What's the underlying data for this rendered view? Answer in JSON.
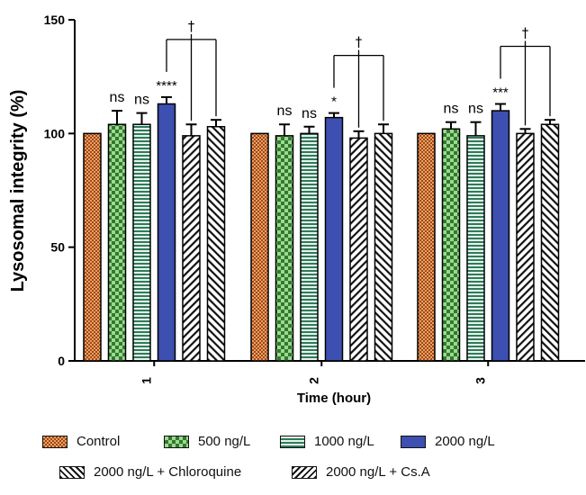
{
  "chart_data": {
    "type": "bar",
    "title": "",
    "xlabel": "Time (hour)",
    "ylabel": "Lysosomal integrity (%)",
    "ylim": [
      0,
      150
    ],
    "yticks": [
      0,
      50,
      100,
      150
    ],
    "categories": [
      "1",
      "2",
      "3"
    ],
    "series": [
      {
        "name": "Control",
        "values": [
          100,
          100,
          100
        ],
        "errors": [
          0,
          0,
          0
        ],
        "labels": [
          "",
          "",
          ""
        ],
        "pattern": "checker-brown",
        "color": "#d9773a"
      },
      {
        "name": "500 ng/L",
        "values": [
          104,
          99,
          102
        ],
        "errors": [
          6,
          5,
          3
        ],
        "labels": [
          "ns",
          "ns",
          "ns"
        ],
        "pattern": "checker-green",
        "color": "#7cc36a"
      },
      {
        "name": "1000 ng/L",
        "values": [
          104,
          100,
          99
        ],
        "errors": [
          5,
          3,
          6
        ],
        "labels": [
          "ns",
          "ns",
          "ns"
        ],
        "pattern": "hlines-green",
        "color": "#7ab89a"
      },
      {
        "name": "2000 ng/L",
        "values": [
          113,
          107,
          110
        ],
        "errors": [
          3,
          2,
          3
        ],
        "labels": [
          "****",
          "*",
          "***"
        ],
        "pattern": "solid-blue",
        "color": "#3d4fb0"
      },
      {
        "name": "2000 ng/L + Chloroquine",
        "values": [
          99,
          98,
          100
        ],
        "errors": [
          5,
          3,
          2
        ],
        "labels": [
          "",
          "",
          ""
        ],
        "pattern": "diag-right",
        "color": "#111111"
      },
      {
        "name": "2000 ng/L + Cs.A",
        "values": [
          103,
          100,
          104
        ],
        "errors": [
          3,
          4,
          2
        ],
        "labels": [
          "",
          "",
          ""
        ],
        "pattern": "diag-left",
        "color": "#111111"
      }
    ],
    "comparison_bracket": {
      "symbol": "†",
      "from": "2000 ng/L",
      "to": [
        "2000 ng/L + Chloroquine",
        "2000 ng/L + Cs.A"
      ]
    }
  }
}
